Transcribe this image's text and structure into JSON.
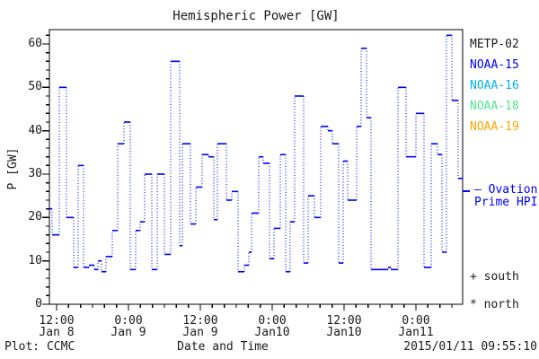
{
  "title": "Hemispheric Power [GW]",
  "y_axis": {
    "label": "P [GW]",
    "tick_values": [
      0,
      10,
      20,
      30,
      40,
      50,
      60
    ],
    "minor_step": 2,
    "range": [
      0,
      60
    ]
  },
  "x_axis": {
    "label": "Date and Time",
    "range_hours": [
      10.8,
      79.8
    ],
    "minor_step_hours": 2,
    "ticks": [
      {
        "hour": 12,
        "time": "12:00",
        "date": "Jan 8"
      },
      {
        "hour": 24,
        "time": "0:00",
        "date": "Jan 9"
      },
      {
        "hour": 36,
        "time": "12:00",
        "date": "Jan 9"
      },
      {
        "hour": 48,
        "time": "0:00",
        "date": "Jan10"
      },
      {
        "hour": 60,
        "time": "12:00",
        "date": "Jan10"
      },
      {
        "hour": 72,
        "time": "0:00",
        "date": "Jan11"
      }
    ]
  },
  "legend": {
    "satellites": [
      {
        "label": "METP-02",
        "color": "#1a1a1a"
      },
      {
        "label": "NOAA-15",
        "color": "#0000ff"
      },
      {
        "label": "NOAA-16",
        "color": "#00b4f0"
      },
      {
        "label": "NOAA-18",
        "color": "#4de68f"
      },
      {
        "label": "NOAA-19",
        "color": "#ffa500"
      }
    ],
    "ovation_line1": "— Ovation",
    "ovation_line2": "Prime HPI",
    "ovation_color": "#0000ff",
    "south_label": "+ south",
    "north_label": "* north"
  },
  "footer": {
    "left": "Plot: CCMC",
    "right": "2015/01/11 09:55:10"
  },
  "colors": {
    "frame": "#000000",
    "series": "#0000ff",
    "background": "#ffffff"
  },
  "chart_data": {
    "type": "line",
    "subtype": "step",
    "title": "Hemispheric Power [GW]",
    "xlabel": "Date and Time",
    "ylabel": "P [GW]",
    "ylim": [
      0,
      60
    ],
    "xlim_hours": [
      10.8,
      79.8
    ],
    "x_unit": "hours since 2015-01-08 00:00 UT",
    "grid": false,
    "legend_position": "right",
    "series": [
      {
        "name": "Ovation Prime HPI",
        "color": "#0000ff",
        "t_end": 79.8,
        "steps": [
          [
            10.8,
            22
          ],
          [
            11.25,
            16
          ],
          [
            12.45,
            50
          ],
          [
            13.65,
            20
          ],
          [
            14.85,
            8.5
          ],
          [
            15.6,
            32
          ],
          [
            16.5,
            8.5
          ],
          [
            17.4,
            9
          ],
          [
            18.3,
            8
          ],
          [
            18.9,
            10
          ],
          [
            19.5,
            7.5
          ],
          [
            20.25,
            11
          ],
          [
            21.3,
            17
          ],
          [
            22.2,
            37
          ],
          [
            23.25,
            42
          ],
          [
            24.3,
            8
          ],
          [
            25.2,
            17
          ],
          [
            25.95,
            19
          ],
          [
            26.7,
            30
          ],
          [
            27.9,
            8
          ],
          [
            28.8,
            30
          ],
          [
            30.0,
            11.5
          ],
          [
            31.05,
            56
          ],
          [
            32.55,
            13.5
          ],
          [
            33.0,
            37
          ],
          [
            34.35,
            18.5
          ],
          [
            35.25,
            27
          ],
          [
            36.3,
            34.5
          ],
          [
            37.35,
            34
          ],
          [
            38.25,
            19.5
          ],
          [
            38.85,
            37
          ],
          [
            40.35,
            24
          ],
          [
            41.25,
            26
          ],
          [
            42.3,
            7.5
          ],
          [
            43.35,
            9
          ],
          [
            44.1,
            12
          ],
          [
            44.55,
            21
          ],
          [
            45.75,
            34
          ],
          [
            46.5,
            32.5
          ],
          [
            47.55,
            10.5
          ],
          [
            48.3,
            17.5
          ],
          [
            49.35,
            34.5
          ],
          [
            50.25,
            7.5
          ],
          [
            51.0,
            19
          ],
          [
            51.75,
            48
          ],
          [
            53.25,
            9.5
          ],
          [
            54.0,
            25
          ],
          [
            55.05,
            20
          ],
          [
            56.1,
            41
          ],
          [
            57.3,
            40
          ],
          [
            58.05,
            37
          ],
          [
            59.1,
            9.5
          ],
          [
            59.85,
            33
          ],
          [
            60.6,
            24
          ],
          [
            62.1,
            41
          ],
          [
            62.85,
            59
          ],
          [
            63.75,
            43
          ],
          [
            64.5,
            8
          ],
          [
            67.35,
            8.5
          ],
          [
            67.8,
            8
          ],
          [
            69.0,
            50
          ],
          [
            70.35,
            34
          ],
          [
            72.0,
            44
          ],
          [
            73.35,
            8.5
          ],
          [
            74.55,
            37
          ],
          [
            75.6,
            34.5
          ],
          [
            76.35,
            12
          ],
          [
            77.1,
            62
          ],
          [
            78.0,
            47
          ],
          [
            79.05,
            29
          ]
        ]
      }
    ]
  }
}
